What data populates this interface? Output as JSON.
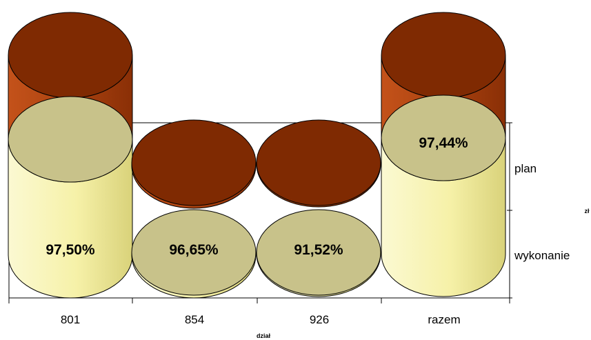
{
  "chart_data": {
    "type": "3d-cylinder-column",
    "categories": [
      "801",
      "854",
      "926",
      "razem"
    ],
    "series": [
      {
        "name": "wykonanie",
        "percent_labels": [
          "97,50%",
          "96,65%",
          "91,52%",
          "97,44%"
        ]
      },
      {
        "name": "plan"
      }
    ],
    "xlabel": "dział",
    "ylabel": "zł",
    "legend": "right",
    "colors": {
      "wykonanie": "#c8c28a",
      "wykonanie_side": "#fdfbc6",
      "plan": "#7f2a02",
      "plan_side": "#b84a12"
    }
  }
}
